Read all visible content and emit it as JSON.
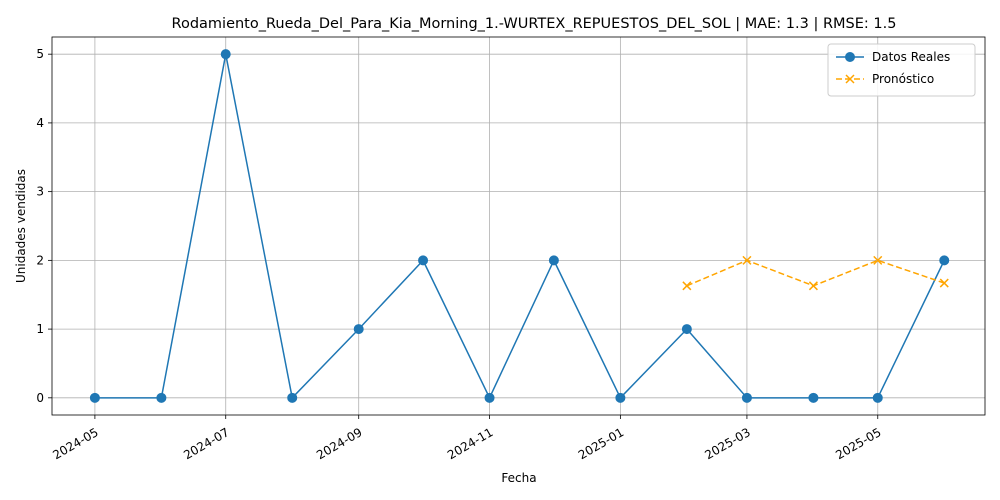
{
  "chart_data": {
    "type": "line",
    "title": "Rodamiento_Rueda_Del_Para_Kia_Morning_1.-WURTEX_REPUESTOS_DEL_SOL | MAE: 1.3 | RMSE: 1.5",
    "xlabel": "Fecha",
    "ylabel": "Unidades vendidas",
    "xlim": [
      "2024-04-11",
      "2025-06-20"
    ],
    "ylim": [
      -0.25,
      5.25
    ],
    "x_ticks": [
      "2024-05",
      "2024-07",
      "2024-09",
      "2024-11",
      "2025-01",
      "2025-03",
      "2025-05"
    ],
    "y_ticks": [
      0,
      1,
      2,
      3,
      4,
      5
    ],
    "grid": true,
    "legend_position": "top-right",
    "series": [
      {
        "name": "Datos Reales",
        "color": "#1f77b4",
        "line_style": "solid",
        "marker": "circle",
        "points": [
          {
            "x": "2024-05-01",
            "y": 0
          },
          {
            "x": "2024-06-01",
            "y": 0
          },
          {
            "x": "2024-07-01",
            "y": 5
          },
          {
            "x": "2024-08-01",
            "y": 0
          },
          {
            "x": "2024-09-01",
            "y": 1
          },
          {
            "x": "2024-10-01",
            "y": 2
          },
          {
            "x": "2024-11-01",
            "y": 0
          },
          {
            "x": "2024-12-01",
            "y": 2
          },
          {
            "x": "2025-01-01",
            "y": 0
          },
          {
            "x": "2025-02-01",
            "y": 1
          },
          {
            "x": "2025-03-01",
            "y": 0
          },
          {
            "x": "2025-04-01",
            "y": 0
          },
          {
            "x": "2025-05-01",
            "y": 0
          },
          {
            "x": "2025-06-01",
            "y": 2
          }
        ]
      },
      {
        "name": "Pronóstico",
        "color": "#ffa500",
        "line_style": "dashed",
        "marker": "x",
        "points": [
          {
            "x": "2025-02-01",
            "y": 1.63
          },
          {
            "x": "2025-03-01",
            "y": 2.0
          },
          {
            "x": "2025-04-01",
            "y": 1.63
          },
          {
            "x": "2025-05-01",
            "y": 2.0
          },
          {
            "x": "2025-06-01",
            "y": 1.67
          }
        ]
      }
    ]
  }
}
